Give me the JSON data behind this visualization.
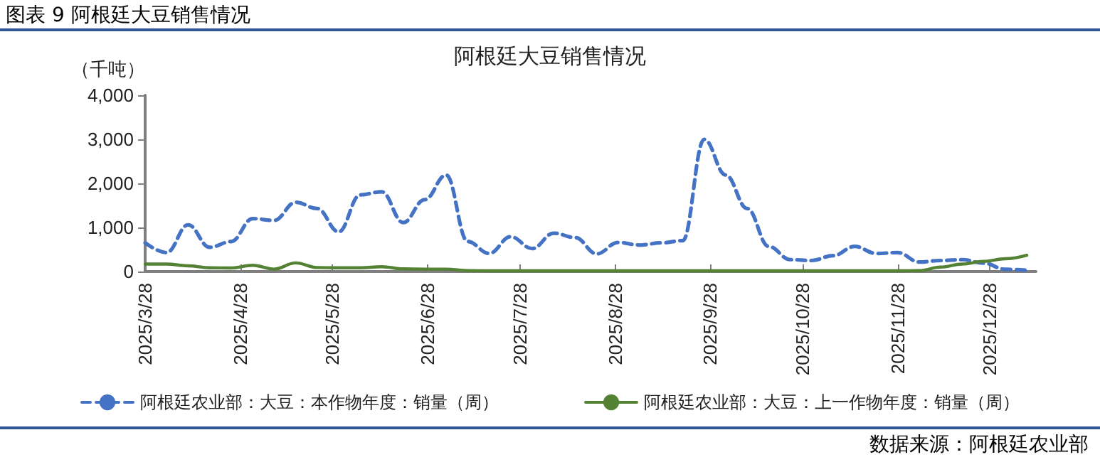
{
  "chart_data": {
    "type": "line",
    "title": "阿根廷大豆销售情况",
    "ylabel": "（千吨）",
    "annotations": [
      "图表 9  阿根廷大豆销售情况",
      "数据来源：阿根廷农业部"
    ],
    "xlim": [
      "2025-03-28",
      "2026-01-12"
    ],
    "xticks": [
      {
        "value": "2025-03-28",
        "label": "2025/3/28"
      },
      {
        "value": "2025-04-28",
        "label": "2025/4/28"
      },
      {
        "value": "2025-05-28",
        "label": "2025/5/28"
      },
      {
        "value": "2025-06-28",
        "label": "2025/6/28"
      },
      {
        "value": "2025-07-28",
        "label": "2025/7/28"
      },
      {
        "value": "2025-08-28",
        "label": "2025/8/28"
      },
      {
        "value": "2025-09-28",
        "label": "2025/9/28"
      },
      {
        "value": "2025-10-28",
        "label": "2025/10/28"
      },
      {
        "value": "2025-11-28",
        "label": "2025/11/28"
      },
      {
        "value": "2025-12-28",
        "label": "2025/12/28"
      }
    ],
    "ylim": [
      0,
      4000
    ],
    "yticks": [
      {
        "value": 0,
        "label": "0"
      },
      {
        "value": 1000,
        "label": "1,000"
      },
      {
        "value": 2000,
        "label": "2,000"
      },
      {
        "value": 3000,
        "label": "3,000"
      },
      {
        "value": 4000,
        "label": "4,000"
      }
    ],
    "x": [
      "2025-03-28",
      "2025-04-04",
      "2025-04-11",
      "2025-04-18",
      "2025-04-25",
      "2025-05-02",
      "2025-05-09",
      "2025-05-16",
      "2025-05-23",
      "2025-05-30",
      "2025-06-06",
      "2025-06-13",
      "2025-06-20",
      "2025-06-27",
      "2025-07-04",
      "2025-07-11",
      "2025-07-18",
      "2025-07-25",
      "2025-08-01",
      "2025-08-08",
      "2025-08-15",
      "2025-08-22",
      "2025-08-29",
      "2025-09-05",
      "2025-09-12",
      "2025-09-19",
      "2025-09-26",
      "2025-10-03",
      "2025-10-10",
      "2025-10-17",
      "2025-10-24",
      "2025-10-31",
      "2025-11-07",
      "2025-11-14",
      "2025-11-21",
      "2025-11-28",
      "2025-12-05",
      "2025-12-12",
      "2025-12-19",
      "2025-12-26",
      "2026-01-02",
      "2026-01-09"
    ],
    "series": [
      {
        "name": "阿根廷农业部：大豆：本作物年度：销量（周）",
        "color": "#4472c4",
        "line_style": "dashed",
        "values": [
          650,
          430,
          1060,
          550,
          680,
          1200,
          1160,
          1570,
          1430,
          900,
          1740,
          1810,
          1110,
          1630,
          2190,
          680,
          410,
          790,
          520,
          870,
          770,
          400,
          660,
          600,
          650,
          700,
          3000,
          2190,
          1430,
          570,
          270,
          250,
          360,
          570,
          410,
          430,
          215,
          250,
          270,
          190,
          50,
          30
        ]
      },
      {
        "name": "阿根廷农业部：大豆：上一作物年度：销量（周）",
        "color": "#548235",
        "line_style": "solid",
        "values": [
          170,
          170,
          130,
          85,
          80,
          140,
          55,
          195,
          90,
          85,
          85,
          110,
          60,
          55,
          55,
          20,
          15,
          15,
          15,
          15,
          15,
          15,
          15,
          15,
          15,
          15,
          15,
          15,
          15,
          15,
          15,
          15,
          15,
          15,
          15,
          15,
          20,
          100,
          170,
          230,
          290,
          370
        ]
      }
    ],
    "grid": false,
    "legend": "bottom",
    "marker": "none"
  }
}
